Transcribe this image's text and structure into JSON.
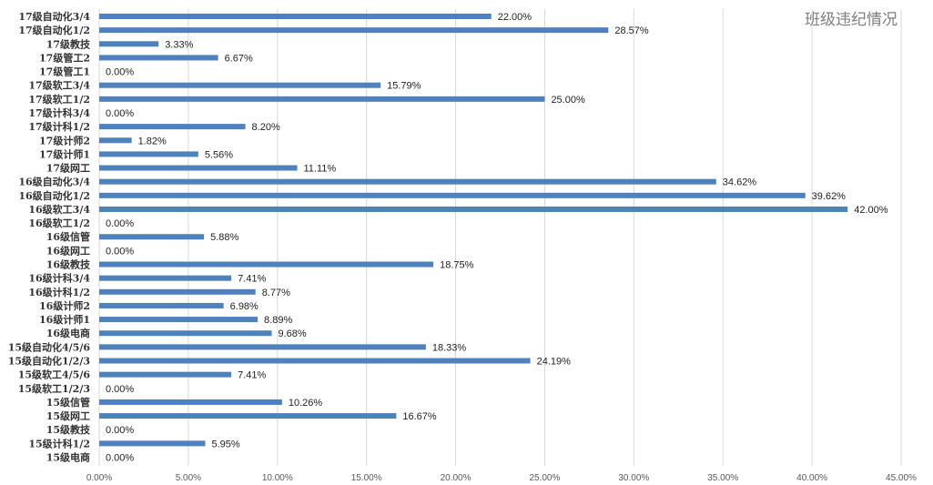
{
  "chart_data": {
    "type": "bar",
    "orientation": "horizontal",
    "title": "班级违纪情况",
    "categories": [
      "17级自动化3/4",
      "17级自动化1/2",
      "17级教技",
      "17级管工2",
      "17级管工1",
      "17级软工3/4",
      "17级软工1/2",
      "17级计科3/4",
      "17级计科1/2",
      "17级计师2",
      "17级计师1",
      "17级网工",
      "16级自动化3/4",
      "16级自动化1/2",
      "16级软工3/4",
      "16级软工1/2",
      "16级信管",
      "16级网工",
      "16级教技",
      "16级计科3/4",
      "16级计科1/2",
      "16级计师2",
      "16级计师1",
      "16级电商",
      "15级自动化4/5/6",
      "15级自动化1/2/3",
      "15级软工4/5/6",
      "15级软工1/2/3",
      "15级信管",
      "15级网工",
      "15级教技",
      "15级计科1/2",
      "15级电商"
    ],
    "values": [
      22.0,
      28.57,
      3.33,
      6.67,
      0.0,
      15.79,
      25.0,
      0.0,
      8.2,
      1.82,
      5.56,
      11.11,
      34.62,
      39.62,
      42.0,
      0.0,
      5.88,
      0.0,
      18.75,
      7.41,
      8.77,
      6.98,
      8.89,
      9.68,
      18.33,
      24.19,
      7.41,
      0.0,
      10.26,
      16.67,
      0.0,
      5.95,
      0.0
    ],
    "value_labels": [
      "22.00%",
      "28.57%",
      "3.33%",
      "6.67%",
      "0.00%",
      "15.79%",
      "25.00%",
      "0.00%",
      "8.20%",
      "1.82%",
      "5.56%",
      "11.11%",
      "34.62%",
      "39.62%",
      "42.00%",
      "0.00%",
      "5.88%",
      "0.00%",
      "18.75%",
      "7.41%",
      "8.77%",
      "6.98%",
      "8.89%",
      "9.68%",
      "18.33%",
      "24.19%",
      "7.41%",
      "0.00%",
      "10.26%",
      "16.67%",
      "0.00%",
      "5.95%",
      "0.00%"
    ],
    "xlim": [
      0,
      45
    ],
    "xticks": [
      0,
      5,
      10,
      15,
      20,
      25,
      30,
      35,
      40,
      45
    ],
    "xtick_labels": [
      "0.00%",
      "5.00%",
      "10.00%",
      "15.00%",
      "20.00%",
      "25.00%",
      "30.00%",
      "35.00%",
      "40.00%",
      "45.00%"
    ],
    "grid": "vertical",
    "bar_color": "#4f81bd",
    "grid_color": "#d9d9d9",
    "legend": "none"
  }
}
